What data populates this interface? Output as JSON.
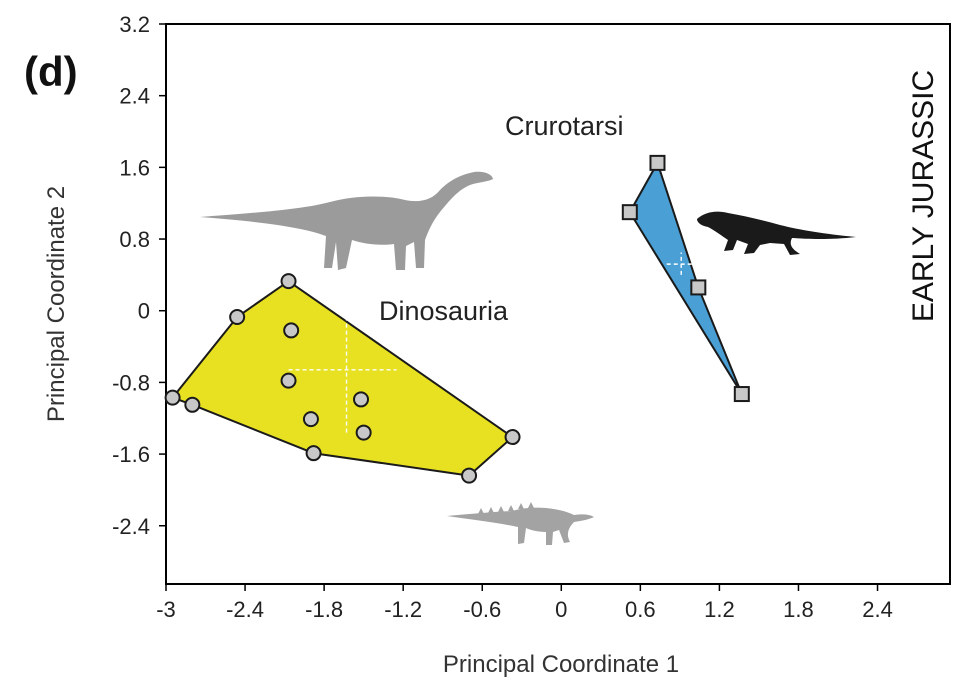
{
  "panel_label": "(d)",
  "period_label": "EARLY JURASSIC",
  "chart_data": {
    "type": "scatter",
    "xlabel": "Principal Coordinate 1",
    "ylabel": "Principal Coordinate 2",
    "xlim": [
      -3,
      2.95
    ],
    "ylim": [
      -3.05,
      3.2
    ],
    "xticks": [
      "-3",
      "-2.4",
      "-1.8",
      "-1.2",
      "-0.6",
      "0",
      "0.6",
      "1.2",
      "1.8",
      "2.4"
    ],
    "yticks": [
      "3.2",
      "2.4",
      "1.6",
      "0.8",
      "0",
      "-0.8",
      "-1.6",
      "-2.4"
    ],
    "grid": false,
    "series": [
      {
        "name": "Dinosauria",
        "marker": "circle",
        "hull_color": "#e8e122",
        "marker_color": "#c8c8c8",
        "points": [
          {
            "x": -2.07,
            "y": 0.33
          },
          {
            "x": -2.46,
            "y": -0.07
          },
          {
            "x": -2.05,
            "y": -0.22
          },
          {
            "x": -2.07,
            "y": -0.78
          },
          {
            "x": -1.52,
            "y": -0.99
          },
          {
            "x": -1.9,
            "y": -1.21
          },
          {
            "x": -1.5,
            "y": -1.36
          },
          {
            "x": -2.95,
            "y": -0.97
          },
          {
            "x": -2.8,
            "y": -1.05
          },
          {
            "x": -1.88,
            "y": -1.59
          },
          {
            "x": -0.7,
            "y": -1.84
          },
          {
            "x": -0.37,
            "y": -1.41
          }
        ],
        "hull": [
          {
            "x": -2.07,
            "y": 0.33
          },
          {
            "x": -0.37,
            "y": -1.41
          },
          {
            "x": -0.7,
            "y": -1.84
          },
          {
            "x": -1.88,
            "y": -1.59
          },
          {
            "x": -2.8,
            "y": -1.05
          },
          {
            "x": -2.95,
            "y": -0.97
          },
          {
            "x": -2.46,
            "y": -0.07
          }
        ],
        "crosshair": {
          "x_center": -1.63,
          "x_range": [
            -2.07,
            -1.25
          ],
          "y_center": -0.66,
          "y_range": [
            -1.36,
            0.33
          ]
        }
      },
      {
        "name": "Crurotarsi",
        "marker": "square",
        "hull_color": "#4a9fd4",
        "marker_color": "#c8c8c8",
        "points": [
          {
            "x": 0.73,
            "y": 1.65
          },
          {
            "x": 0.52,
            "y": 1.1
          },
          {
            "x": 1.04,
            "y": 0.26
          },
          {
            "x": 1.37,
            "y": -0.93
          }
        ],
        "hull": [
          {
            "x": 0.73,
            "y": 1.65
          },
          {
            "x": 1.04,
            "y": 0.26
          },
          {
            "x": 1.37,
            "y": -0.93
          },
          {
            "x": 0.52,
            "y": 1.1
          }
        ],
        "crosshair": {
          "x_center": 0.91,
          "x_range": [
            0.8,
            1.02
          ],
          "y_center": 0.52,
          "y_range": [
            0.4,
            0.65
          ]
        }
      }
    ]
  }
}
